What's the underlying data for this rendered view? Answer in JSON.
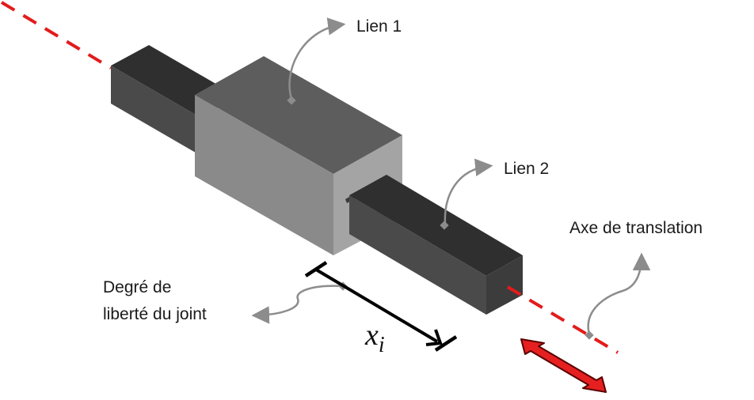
{
  "labels": {
    "link1": "Lien 1",
    "link2": "Lien 2",
    "axis": "Axe de translation",
    "dof_line1": "Degré de",
    "dof_line2": "liberté du joint",
    "variable_base": "x",
    "variable_subscript": "i"
  },
  "colors": {
    "axis_dash": "#e31b1b",
    "motion_arrow": "#e62020",
    "outer_block_top": "#5d5d5d",
    "outer_block_front": "#8a8a8a",
    "outer_block_side": "#a4a4a4",
    "inner_bar_top": "#2f2f2f",
    "inner_bar_front": "#4a4a4a",
    "callout": "#8c8c8c"
  }
}
